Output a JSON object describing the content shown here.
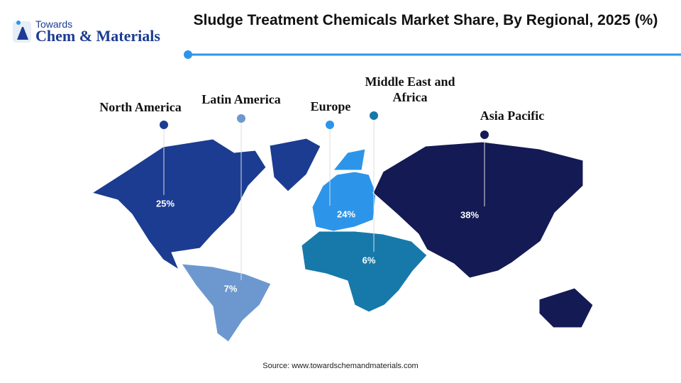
{
  "header": {
    "logo_top": "Towards",
    "logo_main": "Chem & Materials",
    "title": "Sludge Treatment Chemicals Market Share, By Regional, 2025 (%)"
  },
  "map": {
    "regions": [
      {
        "name": "North America",
        "value": 25,
        "value_label": "25%",
        "color": "#1b3c91"
      },
      {
        "name": "Latin America",
        "value": 7,
        "value_label": "7%",
        "color": "#6d98cf"
      },
      {
        "name": "Europe",
        "value": 24,
        "value_label": "24%",
        "color": "#2c95ea"
      },
      {
        "name": "Middle East and Africa",
        "value": 6,
        "value_label": "6%",
        "color": "#1679aa"
      },
      {
        "name": "Asia Pacific",
        "value": 38,
        "value_label": "38%",
        "color": "#131a54"
      }
    ]
  },
  "source": "Source: www.towardschemandmaterials.com"
}
